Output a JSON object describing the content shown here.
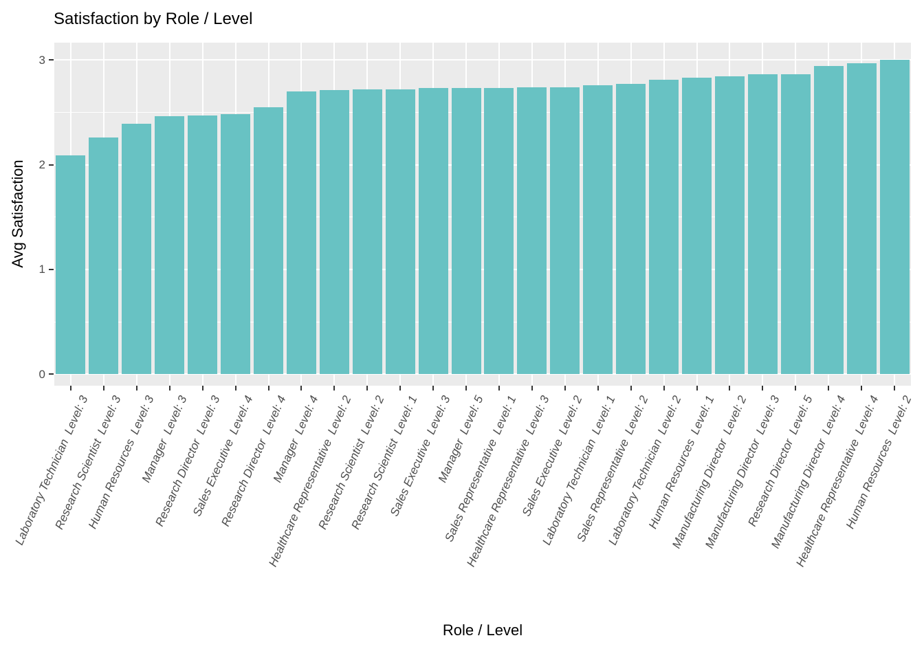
{
  "chart_data": {
    "type": "bar",
    "title": "Satisfaction by Role / Level",
    "xlabel": "Role / Level",
    "ylabel": "Avg Satisfaction",
    "ylim": [
      0,
      3
    ],
    "yticks": [
      0,
      1,
      2,
      3
    ],
    "ytick_labels": [
      "0",
      "1",
      "2",
      "3"
    ],
    "minor_gridlines": [
      0.5,
      1.5,
      2.5
    ],
    "grid": true,
    "legend": false,
    "categories": [
      "Laboratory Technician  Level: 3",
      "Research Scientist  Level: 3",
      "Human Resources  Level: 3",
      "Manager  Level: 3",
      "Research Director  Level: 3",
      "Sales Executive  Level: 4",
      "Research Director  Level: 4",
      "Manager  Level: 4",
      "Healthcare Representative  Level: 2",
      "Research Scientist  Level: 2",
      "Research Scientist  Level: 1",
      "Sales Executive  Level: 3",
      "Manager  Level: 5",
      "Sales Representative  Level: 1",
      "Healthcare Representative  Level: 3",
      "Sales Executive  Level: 2",
      "Laboratory Technician  Level: 1",
      "Sales Representative  Level: 2",
      "Laboratory Technician  Level: 2",
      "Human Resources  Level: 1",
      "Manufacturing Director  Level: 2",
      "Manufacturing Director  Level: 3",
      "Research Director  Level: 5",
      "Manufacturing Director  Level: 4",
      "Healthcare Representative  Level: 4",
      "Human Resources  Level: 2"
    ],
    "values": [
      2.09,
      2.26,
      2.39,
      2.46,
      2.47,
      2.48,
      2.55,
      2.7,
      2.71,
      2.72,
      2.72,
      2.73,
      2.73,
      2.73,
      2.74,
      2.74,
      2.76,
      2.77,
      2.81,
      2.83,
      2.84,
      2.86,
      2.86,
      2.94,
      2.97,
      3.0
    ],
    "colors": {
      "bar_fill": "#68C2C3",
      "panel_background": "#EBEBEB",
      "gridline": "#FFFFFF",
      "tick_label": "#4D4D4D",
      "tick_mark": "#333333",
      "title": "#000000",
      "axis_title": "#000000",
      "page_background": "#FFFFFF"
    }
  }
}
